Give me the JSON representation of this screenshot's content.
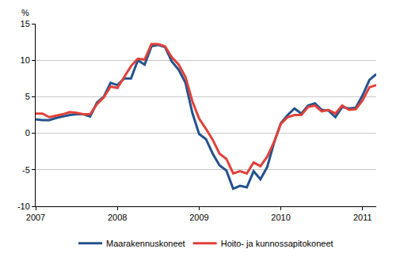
{
  "chart_data": {
    "type": "line",
    "ylabel": "%",
    "categories": [
      "2007",
      null,
      null,
      null,
      null,
      null,
      null,
      null,
      null,
      null,
      null,
      null,
      "2008",
      null,
      null,
      null,
      null,
      null,
      null,
      null,
      null,
      null,
      null,
      null,
      "2009",
      null,
      null,
      null,
      null,
      null,
      null,
      null,
      null,
      null,
      null,
      null,
      "2010",
      null,
      null,
      null,
      null,
      null,
      null,
      null,
      null,
      null,
      null,
      null,
      "2011",
      null,
      null
    ],
    "series": [
      {
        "name": "Maarakennuskoneet",
        "color": "#24528c",
        "values": [
          1.9,
          1.8,
          1.8,
          2.1,
          2.3,
          2.5,
          2.6,
          2.6,
          2.3,
          4.2,
          5.0,
          6.9,
          6.6,
          7.5,
          7.5,
          10.0,
          9.4,
          11.9,
          12.1,
          11.8,
          9.8,
          8.7,
          6.9,
          2.8,
          -0.1,
          -0.8,
          -2.8,
          -4.4,
          -5.1,
          -7.6,
          -7.2,
          -7.4,
          -5.2,
          -6.3,
          -4.6,
          -1.3,
          1.4,
          2.5,
          3.4,
          2.7,
          3.8,
          4.1,
          3.2,
          3.1,
          2.2,
          3.6,
          3.4,
          3.5,
          5.2,
          7.3,
          8.1
        ]
      },
      {
        "name": "Hoito- ja kunnossapitokoneet",
        "color": "#e0413b",
        "values": [
          2.7,
          2.7,
          2.2,
          2.4,
          2.6,
          2.9,
          2.8,
          2.6,
          2.6,
          4.0,
          4.9,
          6.4,
          6.2,
          7.7,
          9.2,
          10.2,
          10.1,
          12.2,
          12.2,
          11.9,
          10.4,
          9.4,
          7.7,
          4.4,
          2.0,
          0.6,
          -0.9,
          -2.8,
          -3.5,
          -5.5,
          -5.2,
          -5.5,
          -4.0,
          -4.5,
          -3.2,
          -1.2,
          1.3,
          2.2,
          2.5,
          2.5,
          3.6,
          3.8,
          3.0,
          3.2,
          2.7,
          3.8,
          3.2,
          3.3,
          4.5,
          6.3,
          6.6
        ]
      }
    ],
    "ylim": [
      -10,
      15
    ],
    "yticks": [
      -10,
      -5,
      0,
      5,
      10,
      15
    ],
    "grid": true,
    "legend": "bottom"
  }
}
